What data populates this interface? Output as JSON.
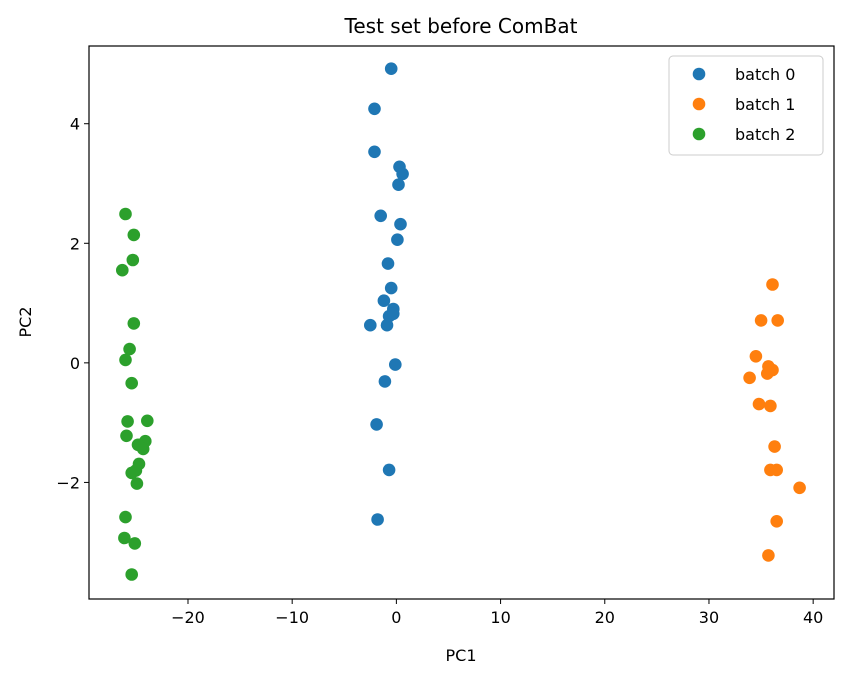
{
  "chart_data": {
    "type": "scatter",
    "title": "Test set before ComBat",
    "xlabel": "PC1",
    "ylabel": "PC2",
    "xlim": [
      -29.5,
      42
    ],
    "ylim": [
      -3.95,
      5.3
    ],
    "xticks": [
      -20,
      -10,
      0,
      10,
      20,
      30,
      40
    ],
    "yticks": [
      -2,
      0,
      2,
      4
    ],
    "grid": false,
    "legend_position": "top-right",
    "series": [
      {
        "name": "batch 0",
        "color": "#1f77b4",
        "points": [
          [
            -0.5,
            4.92
          ],
          [
            -2.1,
            4.25
          ],
          [
            -2.1,
            3.53
          ],
          [
            0.3,
            3.28
          ],
          [
            0.6,
            3.16
          ],
          [
            0.2,
            2.98
          ],
          [
            -1.5,
            2.46
          ],
          [
            0.4,
            2.32
          ],
          [
            0.1,
            2.06
          ],
          [
            -0.8,
            1.66
          ],
          [
            -0.5,
            1.25
          ],
          [
            -1.2,
            1.04
          ],
          [
            -0.3,
            0.9
          ],
          [
            -0.7,
            0.78
          ],
          [
            -0.3,
            0.82
          ],
          [
            -2.5,
            0.63
          ],
          [
            -0.9,
            0.63
          ],
          [
            -0.1,
            -0.03
          ],
          [
            -1.1,
            -0.31
          ],
          [
            -1.9,
            -1.03
          ],
          [
            -0.7,
            -1.79
          ],
          [
            -1.8,
            -2.62
          ]
        ]
      },
      {
        "name": "batch 1",
        "color": "#ff7f0e",
        "points": [
          [
            36.1,
            1.31
          ],
          [
            35.0,
            0.71
          ],
          [
            36.6,
            0.71
          ],
          [
            34.5,
            0.11
          ],
          [
            35.7,
            -0.06
          ],
          [
            36.1,
            -0.12
          ],
          [
            35.6,
            -0.18
          ],
          [
            33.9,
            -0.25
          ],
          [
            34.8,
            -0.69
          ],
          [
            35.9,
            -0.72
          ],
          [
            36.3,
            -1.4
          ],
          [
            35.9,
            -1.79
          ],
          [
            36.5,
            -1.79
          ],
          [
            38.7,
            -2.09
          ],
          [
            36.5,
            -2.65
          ],
          [
            35.7,
            -3.22
          ]
        ]
      },
      {
        "name": "batch 2",
        "color": "#2ca02c",
        "points": [
          [
            -26.0,
            2.49
          ],
          [
            -25.2,
            2.14
          ],
          [
            -25.3,
            1.72
          ],
          [
            -26.3,
            1.55
          ],
          [
            -25.2,
            0.66
          ],
          [
            -25.6,
            0.23
          ],
          [
            -26.0,
            0.05
          ],
          [
            -25.4,
            -0.34
          ],
          [
            -25.8,
            -0.98
          ],
          [
            -23.9,
            -0.97
          ],
          [
            -25.9,
            -1.22
          ],
          [
            -24.1,
            -1.31
          ],
          [
            -24.8,
            -1.37
          ],
          [
            -24.3,
            -1.44
          ],
          [
            -24.7,
            -1.69
          ],
          [
            -25.0,
            -1.8
          ],
          [
            -25.4,
            -1.84
          ],
          [
            -24.9,
            -2.02
          ],
          [
            -26.0,
            -2.58
          ],
          [
            -26.1,
            -2.93
          ],
          [
            -25.1,
            -3.02
          ],
          [
            -25.4,
            -3.54
          ]
        ]
      }
    ]
  }
}
